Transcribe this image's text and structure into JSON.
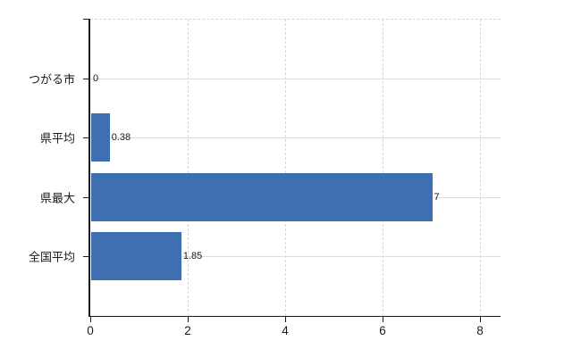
{
  "chart_data": {
    "type": "bar",
    "orientation": "horizontal",
    "title": "",
    "xlabel": "",
    "ylabel": "",
    "categories": [
      "つがる市",
      "県平均",
      "県最大",
      "全国平均"
    ],
    "values": [
      0,
      0.38,
      7,
      1.85
    ],
    "value_labels": [
      "0",
      "0.38",
      "7",
      "1.85"
    ],
    "xticks": [
      0,
      2,
      4,
      6,
      8
    ],
    "xlim": [
      0,
      8.4
    ],
    "grid": {
      "horizontal_solid": true,
      "vertical_dashed": true,
      "top_border_dashed": true
    },
    "legend": "none"
  },
  "colors": {
    "bar": "#3e6fb0",
    "axis": "#1a1a1a",
    "text": "#1a1a1a",
    "grid_horizontal": "#d7dfd7",
    "grid_vertical": "#d9d5de",
    "background": "#ffffff"
  }
}
